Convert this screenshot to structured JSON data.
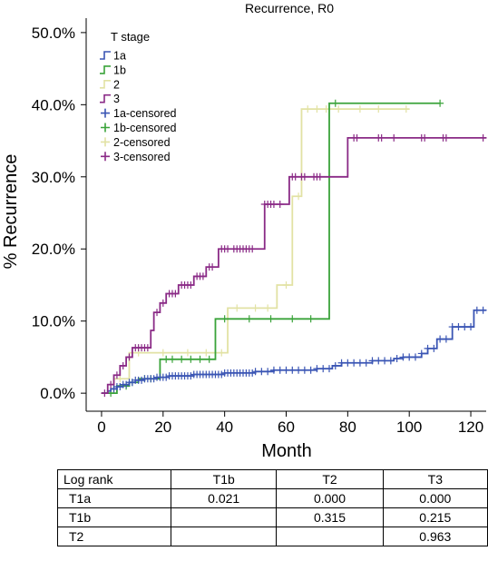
{
  "chart_data": {
    "type": "line",
    "subtype": "kaplan-meier-step",
    "title": "Recurrence, R0",
    "xlabel": "Month",
    "ylabel": "% Recurrence",
    "xlim": [
      -5,
      125
    ],
    "ylim": [
      -2.5,
      52
    ],
    "xticks": [
      0,
      20,
      40,
      60,
      80,
      100,
      120
    ],
    "xtick_labels": [
      "0",
      "20",
      "40",
      "60",
      "80",
      "100",
      "120"
    ],
    "yticks": [
      0,
      10,
      20,
      30,
      40,
      50
    ],
    "ytick_labels": [
      "0.0%",
      "10.0%",
      "20.0%",
      "30.0%",
      "40.0%",
      "50.0%"
    ],
    "grid": false,
    "legend": {
      "title": "T stage",
      "placement": "top-left",
      "entries": [
        {
          "label": "1a",
          "kind": "step",
          "series": "1a"
        },
        {
          "label": "1b",
          "kind": "step",
          "series": "1b"
        },
        {
          "label": "2",
          "kind": "step",
          "series": "2"
        },
        {
          "label": "3",
          "kind": "step",
          "series": "3"
        },
        {
          "label": "1a-censored",
          "kind": "censor",
          "series": "1a"
        },
        {
          "label": "1b-censored",
          "kind": "censor",
          "series": "1b"
        },
        {
          "label": "2-censored",
          "kind": "censor",
          "series": "2"
        },
        {
          "label": "3-censored",
          "kind": "censor",
          "series": "3"
        }
      ]
    },
    "series": [
      {
        "name": "1a",
        "color": "#3a55b4",
        "steps": [
          [
            0,
            0
          ],
          [
            2,
            0.3
          ],
          [
            3,
            0.6
          ],
          [
            5,
            0.9
          ],
          [
            7,
            1.2
          ],
          [
            9,
            1.5
          ],
          [
            11,
            1.8
          ],
          [
            14,
            2.0
          ],
          [
            18,
            2.2
          ],
          [
            22,
            2.4
          ],
          [
            30,
            2.6
          ],
          [
            40,
            2.8
          ],
          [
            50,
            3.0
          ],
          [
            56,
            3.2
          ],
          [
            70,
            3.4
          ],
          [
            75,
            3.8
          ],
          [
            78,
            4.2
          ],
          [
            88,
            4.5
          ],
          [
            95,
            4.8
          ],
          [
            98,
            5.0
          ],
          [
            104,
            5.5
          ],
          [
            106,
            6.2
          ],
          [
            109,
            7.5
          ],
          [
            114,
            9.2
          ],
          [
            121,
            11.5
          ],
          [
            125,
            11.5
          ]
        ],
        "censored": [
          4,
          5,
          6,
          7,
          8,
          9,
          10,
          11,
          12,
          13,
          14,
          15,
          16,
          17,
          18,
          19,
          20,
          21,
          22,
          23,
          24,
          25,
          26,
          27,
          28,
          29,
          30,
          31,
          32,
          33,
          34,
          35,
          36,
          37,
          38,
          39,
          40,
          41,
          42,
          43,
          44,
          45,
          46,
          47,
          48,
          49,
          50,
          52,
          54,
          56,
          58,
          60,
          62,
          64,
          66,
          68,
          70,
          72,
          74,
          76,
          78,
          80,
          82,
          84,
          86,
          88,
          90,
          92,
          94,
          96,
          98,
          100,
          102,
          104,
          106,
          108,
          110,
          112,
          114,
          116,
          118,
          120,
          122,
          124
        ]
      },
      {
        "name": "1b",
        "color": "#3aa33a",
        "steps": [
          [
            0,
            0
          ],
          [
            5,
            1.0
          ],
          [
            9,
            1.5
          ],
          [
            12,
            2.0
          ],
          [
            19,
            4.7
          ],
          [
            37,
            10.3
          ],
          [
            74,
            40.2
          ],
          [
            110,
            40.2
          ]
        ],
        "censored": [
          3,
          8,
          10,
          14,
          16,
          21,
          23,
          26,
          29,
          32,
          35,
          40,
          48,
          55,
          62,
          68,
          76,
          110
        ]
      },
      {
        "name": "2",
        "color": "#e2e2a4",
        "steps": [
          [
            0,
            0
          ],
          [
            4,
            2.0
          ],
          [
            9,
            5.6
          ],
          [
            37,
            5.6
          ],
          [
            41,
            11.8
          ],
          [
            56,
            11.8
          ],
          [
            57,
            15.0
          ],
          [
            62,
            27.3
          ],
          [
            65,
            39.4
          ],
          [
            100,
            39.4
          ]
        ],
        "censored": [
          6,
          12,
          20,
          28,
          34,
          39,
          44,
          50,
          54,
          60,
          64,
          67,
          70,
          73,
          77,
          84,
          90,
          99
        ]
      },
      {
        "name": "3",
        "color": "#8a2a86",
        "steps": [
          [
            0,
            0
          ],
          [
            2,
            1.2
          ],
          [
            4,
            2.5
          ],
          [
            6,
            3.8
          ],
          [
            8,
            5.0
          ],
          [
            10,
            6.3
          ],
          [
            16,
            8.7
          ],
          [
            17,
            11.2
          ],
          [
            19,
            12.5
          ],
          [
            21,
            13.8
          ],
          [
            25,
            15.0
          ],
          [
            30,
            16.2
          ],
          [
            34,
            17.5
          ],
          [
            38,
            20.0
          ],
          [
            50,
            20.0
          ],
          [
            53,
            26.2
          ],
          [
            57,
            26.2
          ],
          [
            61,
            30.0
          ],
          [
            80,
            35.4
          ],
          [
            125,
            35.4
          ]
        ],
        "censored": [
          1,
          3,
          5,
          7,
          9,
          11,
          12,
          13,
          14,
          15,
          18,
          20,
          22,
          23,
          24,
          26,
          27,
          28,
          29,
          31,
          32,
          33,
          35,
          36,
          39,
          40,
          41,
          43,
          44,
          45,
          46,
          47,
          48,
          49,
          53,
          54,
          55,
          56,
          58,
          62,
          63,
          65,
          66,
          69,
          70,
          71,
          82,
          83,
          90,
          91,
          95,
          104,
          105,
          111,
          112,
          124
        ]
      }
    ]
  },
  "logrank_table": {
    "header": [
      "Log rank",
      "T1b",
      "T2",
      "T3"
    ],
    "rows": [
      [
        "T1a",
        "0.021",
        "0.000",
        "0.000"
      ],
      [
        "T1b",
        "",
        "0.315",
        "0.215"
      ],
      [
        "T2",
        "",
        "",
        "0.963"
      ]
    ]
  }
}
